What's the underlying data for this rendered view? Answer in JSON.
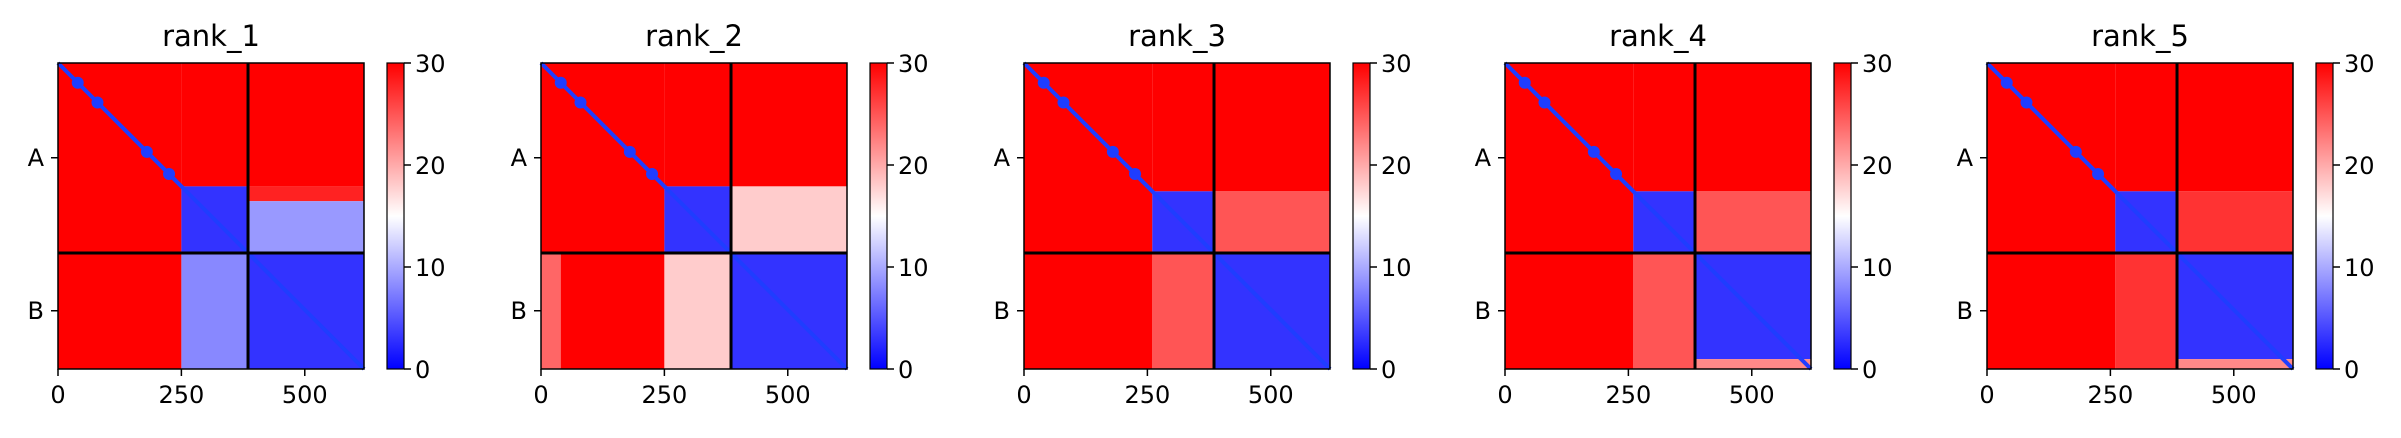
{
  "colors": {
    "cmap": [
      "#0000ff",
      "#ffffff",
      "#ff0000"
    ],
    "frame": "#000000",
    "grid": "#000000"
  },
  "chart_data": [
    {
      "type": "heatmap",
      "title": "rank_1",
      "xlim": [
        0,
        620
      ],
      "ylim": [
        620,
        0
      ],
      "xticks": [
        0,
        250,
        500
      ],
      "chain_labels": [
        "A",
        "B"
      ],
      "chain_boundaries": [
        0,
        385,
        620
      ],
      "chain_centers": [
        192,
        502
      ],
      "colorbar": {
        "vmin": 0,
        "vmax": 30,
        "ticks": [
          0,
          10,
          20,
          30
        ]
      },
      "confident_block": [
        250,
        385
      ],
      "matrix_blocks": [
        {
          "rows": [
            0,
            385
          ],
          "cols": [
            0,
            250
          ],
          "value": 30
        },
        {
          "rows": [
            0,
            250
          ],
          "cols": [
            250,
            620
          ],
          "value": 30
        },
        {
          "rows": [
            250,
            280
          ],
          "cols": [
            385,
            620
          ],
          "value": 28
        },
        {
          "rows": [
            280,
            385
          ],
          "cols": [
            385,
            620
          ],
          "value": 9
        },
        {
          "rows": [
            250,
            385
          ],
          "cols": [
            250,
            385
          ],
          "value": 3
        },
        {
          "rows": [
            385,
            620
          ],
          "cols": [
            0,
            250
          ],
          "value": 30
        },
        {
          "rows": [
            385,
            620
          ],
          "cols": [
            250,
            385
          ],
          "value": 8
        },
        {
          "rows": [
            385,
            620
          ],
          "cols": [
            385,
            620
          ],
          "value": 3
        }
      ]
    },
    {
      "type": "heatmap",
      "title": "rank_2",
      "xlim": [
        0,
        620
      ],
      "ylim": [
        620,
        0
      ],
      "xticks": [
        0,
        250,
        500
      ],
      "chain_labels": [
        "A",
        "B"
      ],
      "chain_boundaries": [
        0,
        385,
        620
      ],
      "chain_centers": [
        192,
        502
      ],
      "colorbar": {
        "vmin": 0,
        "vmax": 30,
        "ticks": [
          0,
          10,
          20,
          30
        ]
      },
      "confident_block": [
        250,
        385
      ],
      "matrix_blocks": [
        {
          "rows": [
            0,
            385
          ],
          "cols": [
            0,
            250
          ],
          "value": 30
        },
        {
          "rows": [
            0,
            250
          ],
          "cols": [
            250,
            620
          ],
          "value": 30
        },
        {
          "rows": [
            250,
            385
          ],
          "cols": [
            385,
            620
          ],
          "value": 18
        },
        {
          "rows": [
            250,
            385
          ],
          "cols": [
            250,
            385
          ],
          "value": 3
        },
        {
          "rows": [
            385,
            620
          ],
          "cols": [
            0,
            40
          ],
          "value": 24
        },
        {
          "rows": [
            385,
            620
          ],
          "cols": [
            40,
            250
          ],
          "value": 30
        },
        {
          "rows": [
            385,
            620
          ],
          "cols": [
            250,
            385
          ],
          "value": 18
        },
        {
          "rows": [
            385,
            620
          ],
          "cols": [
            385,
            620
          ],
          "value": 3
        }
      ]
    },
    {
      "type": "heatmap",
      "title": "rank_3",
      "xlim": [
        0,
        620
      ],
      "ylim": [
        620,
        0
      ],
      "xticks": [
        0,
        250,
        500
      ],
      "chain_labels": [
        "A",
        "B"
      ],
      "chain_boundaries": [
        0,
        385,
        620
      ],
      "chain_centers": [
        192,
        502
      ],
      "colorbar": {
        "vmin": 0,
        "vmax": 30,
        "ticks": [
          0,
          10,
          20,
          30
        ]
      },
      "confident_block": [
        260,
        385
      ],
      "matrix_blocks": [
        {
          "rows": [
            0,
            385
          ],
          "cols": [
            0,
            260
          ],
          "value": 30
        },
        {
          "rows": [
            0,
            260
          ],
          "cols": [
            260,
            620
          ],
          "value": 30
        },
        {
          "rows": [
            260,
            385
          ],
          "cols": [
            385,
            620
          ],
          "value": 25
        },
        {
          "rows": [
            260,
            385
          ],
          "cols": [
            260,
            385
          ],
          "value": 3
        },
        {
          "rows": [
            385,
            620
          ],
          "cols": [
            0,
            260
          ],
          "value": 30
        },
        {
          "rows": [
            385,
            620
          ],
          "cols": [
            260,
            385
          ],
          "value": 25
        },
        {
          "rows": [
            385,
            620
          ],
          "cols": [
            385,
            620
          ],
          "value": 3
        }
      ]
    },
    {
      "type": "heatmap",
      "title": "rank_4",
      "xlim": [
        0,
        620
      ],
      "ylim": [
        620,
        0
      ],
      "xticks": [
        0,
        250,
        500
      ],
      "chain_labels": [
        "A",
        "B"
      ],
      "chain_boundaries": [
        0,
        385,
        620
      ],
      "chain_centers": [
        192,
        502
      ],
      "colorbar": {
        "vmin": 0,
        "vmax": 30,
        "ticks": [
          0,
          10,
          20,
          30
        ]
      },
      "confident_block": [
        260,
        385
      ],
      "matrix_blocks": [
        {
          "rows": [
            0,
            385
          ],
          "cols": [
            0,
            260
          ],
          "value": 30
        },
        {
          "rows": [
            0,
            260
          ],
          "cols": [
            260,
            620
          ],
          "value": 30
        },
        {
          "rows": [
            260,
            385
          ],
          "cols": [
            385,
            620
          ],
          "value": 25
        },
        {
          "rows": [
            260,
            385
          ],
          "cols": [
            260,
            385
          ],
          "value": 3
        },
        {
          "rows": [
            385,
            620
          ],
          "cols": [
            0,
            260
          ],
          "value": 30
        },
        {
          "rows": [
            385,
            620
          ],
          "cols": [
            260,
            385
          ],
          "value": 25
        },
        {
          "rows": [
            385,
            600
          ],
          "cols": [
            385,
            620
          ],
          "value": 3
        },
        {
          "rows": [
            600,
            620
          ],
          "cols": [
            385,
            620
          ],
          "value": 22
        }
      ]
    },
    {
      "type": "heatmap",
      "title": "rank_5",
      "xlim": [
        0,
        620
      ],
      "ylim": [
        620,
        0
      ],
      "xticks": [
        0,
        250,
        500
      ],
      "chain_labels": [
        "A",
        "B"
      ],
      "chain_boundaries": [
        0,
        385,
        620
      ],
      "chain_centers": [
        192,
        502
      ],
      "colorbar": {
        "vmin": 0,
        "vmax": 30,
        "ticks": [
          0,
          10,
          20,
          30
        ]
      },
      "confident_block": [
        260,
        385
      ],
      "matrix_blocks": [
        {
          "rows": [
            0,
            385
          ],
          "cols": [
            0,
            260
          ],
          "value": 30
        },
        {
          "rows": [
            0,
            260
          ],
          "cols": [
            260,
            620
          ],
          "value": 30
        },
        {
          "rows": [
            260,
            385
          ],
          "cols": [
            385,
            620
          ],
          "value": 27
        },
        {
          "rows": [
            260,
            385
          ],
          "cols": [
            260,
            385
          ],
          "value": 3
        },
        {
          "rows": [
            385,
            620
          ],
          "cols": [
            0,
            260
          ],
          "value": 30
        },
        {
          "rows": [
            385,
            620
          ],
          "cols": [
            260,
            385
          ],
          "value": 27
        },
        {
          "rows": [
            385,
            600
          ],
          "cols": [
            385,
            620
          ],
          "value": 3
        },
        {
          "rows": [
            600,
            620
          ],
          "cols": [
            385,
            620
          ],
          "value": 22
        }
      ]
    }
  ]
}
